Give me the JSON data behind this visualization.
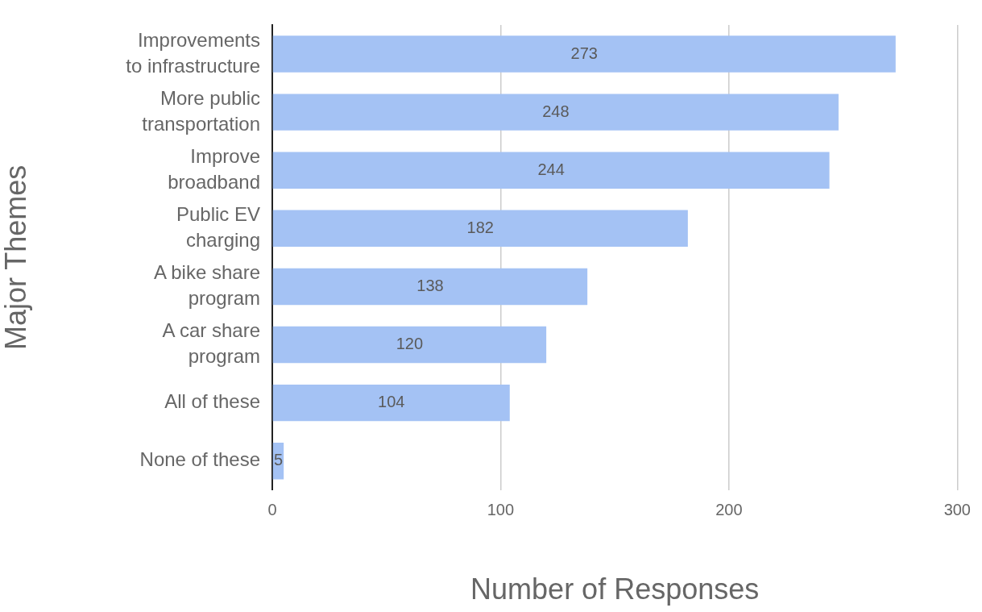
{
  "chart_data": {
    "type": "bar",
    "orientation": "horizontal",
    "categories": [
      "Improvements\nto infrastructure",
      "More public\ntransportation",
      "Improve\nbroadband",
      "Public EV\ncharging",
      "A bike share\nprogram",
      "A car share\nprogram",
      "All of these",
      "None of these"
    ],
    "values": [
      273,
      248,
      244,
      182,
      138,
      120,
      104,
      5
    ],
    "color": "#a4c2f4",
    "xlim": [
      0,
      300
    ],
    "xticks": [
      0,
      100,
      200,
      300
    ],
    "xlabel": "Number of Responses",
    "ylabel": "Major Themes",
    "grid": "x",
    "data_labels": true
  }
}
